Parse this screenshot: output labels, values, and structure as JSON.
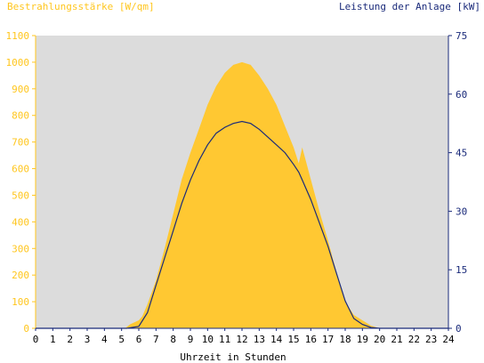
{
  "chart_data": {
    "type": "area",
    "left_axis_title": "Bestrahlungsstärke [W/qm]",
    "right_axis_title": "Leistung der Anlage [kW]",
    "xlabel": "Uhrzeit in Stunden",
    "xlim": [
      0,
      24
    ],
    "ylim_left": [
      0,
      1100
    ],
    "ylim_right": [
      0,
      75
    ],
    "x_ticks": [
      "0",
      "1",
      "2",
      "3",
      "4",
      "5",
      "6",
      "7",
      "8",
      "9",
      "10",
      "11",
      "12",
      "13",
      "14",
      "15",
      "16",
      "17",
      "18",
      "19",
      "20",
      "21",
      "22",
      "23",
      "24"
    ],
    "y_ticks_left": [
      "0",
      "100",
      "200",
      "300",
      "400",
      "500",
      "600",
      "700",
      "800",
      "900",
      "1000",
      "1100"
    ],
    "y_ticks_right": [
      "0",
      "15",
      "30",
      "45",
      "60",
      "75"
    ],
    "grid": false,
    "colors": {
      "irradiance": "#ffc832",
      "power": "#1a2a7a",
      "plot_bg": "#dcdcdc",
      "left_axis": "#ffc61e",
      "right_axis": "#1a2a7a"
    },
    "series": [
      {
        "name": "Bestrahlungsstärke [W/qm]",
        "axis": "left",
        "kind": "area",
        "x": [
          0,
          5.2,
          5.5,
          6.0,
          6.2,
          6.5,
          7.0,
          7.5,
          8.0,
          8.5,
          9.0,
          9.5,
          10.0,
          10.5,
          11.0,
          11.5,
          12.0,
          12.5,
          13.0,
          13.5,
          14.0,
          14.5,
          15.0,
          15.3,
          15.5,
          16.0,
          16.5,
          17.0,
          17.5,
          18.0,
          18.5,
          19.0,
          19.5,
          20.0,
          24
        ],
        "y": [
          0,
          0,
          15,
          30,
          45,
          90,
          180,
          300,
          430,
          560,
          660,
          750,
          840,
          910,
          960,
          990,
          1000,
          990,
          950,
          900,
          840,
          760,
          680,
          620,
          680,
          560,
          440,
          330,
          210,
          100,
          50,
          30,
          10,
          0,
          0
        ]
      },
      {
        "name": "Leistung der Anlage [kW]",
        "axis": "right",
        "kind": "line",
        "x": [
          0,
          5.3,
          6.0,
          6.5,
          7.0,
          7.5,
          8.0,
          8.5,
          9.0,
          9.5,
          10.0,
          10.5,
          11.0,
          11.5,
          12.0,
          12.5,
          13.0,
          13.5,
          14.0,
          14.5,
          15.0,
          15.3,
          15.5,
          16.0,
          16.5,
          17.0,
          17.5,
          18.0,
          18.5,
          19.0,
          19.5,
          20.0,
          24
        ],
        "y": [
          0,
          0,
          0.5,
          4,
          11,
          18,
          25,
          32,
          38,
          43,
          47,
          50,
          51.5,
          52.5,
          53,
          52.5,
          51,
          49,
          47,
          45,
          42,
          40,
          38,
          33,
          27,
          21,
          14,
          7,
          2.5,
          1,
          0.2,
          0,
          0
        ]
      }
    ]
  }
}
